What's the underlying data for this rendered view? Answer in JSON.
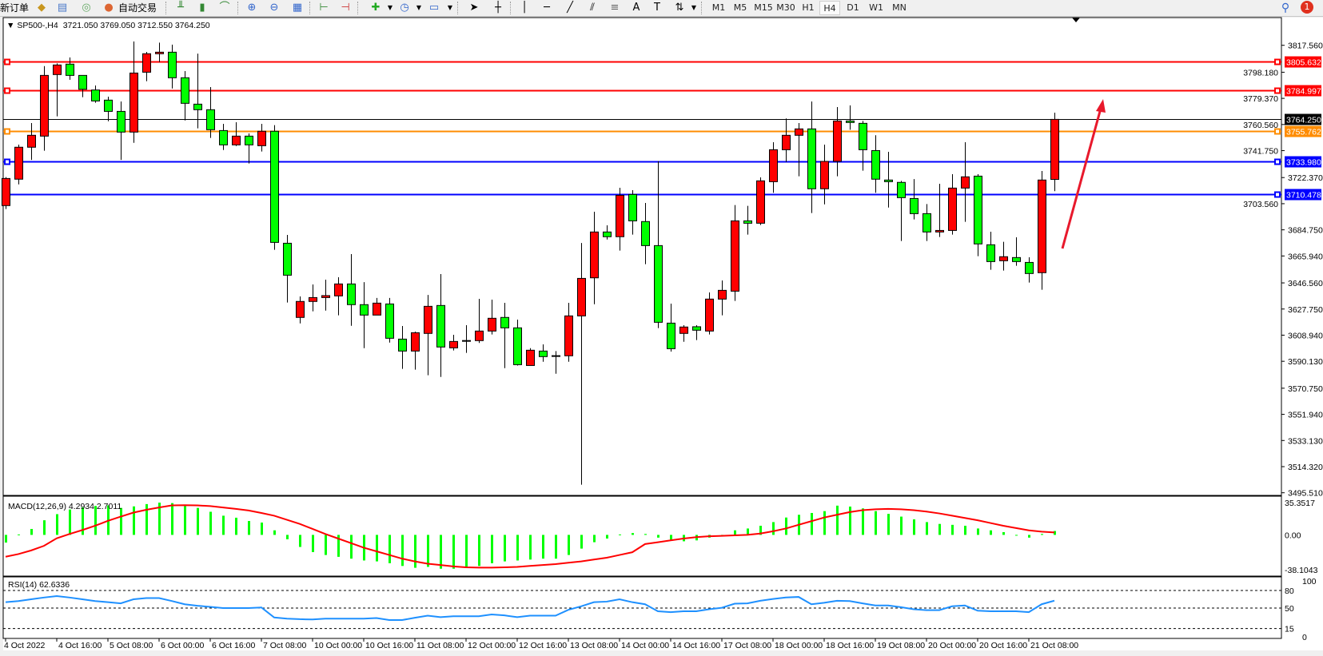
{
  "toolbar": {
    "new_order": "新订单",
    "auto_trading": "自动交易",
    "timeframes": [
      "M1",
      "M5",
      "M15",
      "M30",
      "H1",
      "H4",
      "D1",
      "W1",
      "MN"
    ],
    "active_timeframe": "H4",
    "notification_count": "1"
  },
  "chart_header": {
    "symbol": "SP500-,H4",
    "ohlc": "3721.050 3769.050 3712.550 3764.250"
  },
  "colors": {
    "bull_candle": "#ff0000",
    "bear_candle": "#00ff00",
    "macd_histogram": "#00ff00",
    "macd_signal": "#ff0000",
    "rsi_line": "#1e90ff",
    "resistance": "#ff0000",
    "pivot": "#ff8c00",
    "support": "#0000ff",
    "bid_line": "#000000",
    "arrow": "#e8192c"
  },
  "chart_data": [
    {
      "type": "candlestick",
      "title": "SP500-,H4",
      "ylim": [
        3495.51,
        3817.56
      ],
      "y_ticks": [
        "3817.560",
        "3798.180",
        "3779.370",
        "3760.560",
        "3741.750",
        "3722.370",
        "3703.560",
        "3684.750",
        "3665.940",
        "3646.560",
        "3627.750",
        "3608.940",
        "3590.130",
        "3570.750",
        "3551.940",
        "3533.130",
        "3514.320",
        "3495.510"
      ],
      "x_tick_labels": [
        "4 Oct 2022",
        "4 Oct 16:00",
        "5 Oct 08:00",
        "6 Oct 00:00",
        "6 Oct 16:00",
        "7 Oct 08:00",
        "10 Oct 00:00",
        "10 Oct 16:00",
        "11 Oct 08:00",
        "12 Oct 00:00",
        "12 Oct 16:00",
        "13 Oct 08:00",
        "14 Oct 00:00",
        "14 Oct 16:00",
        "17 Oct 08:00",
        "18 Oct 00:00",
        "18 Oct 16:00",
        "19 Oct 08:00",
        "20 Oct 00:00",
        "20 Oct 16:00",
        "21 Oct 08:00"
      ],
      "bars_per_tick": 4,
      "ohlc": [
        [
          3702.2,
          3722.7,
          3699.7,
          3721.7
        ],
        [
          3721.2,
          3746.1,
          3717.5,
          3744.2
        ],
        [
          3744.2,
          3761.6,
          3735.1,
          3752.8
        ],
        [
          3752.2,
          3802.6,
          3741.7,
          3795.9
        ],
        [
          3796.5,
          3804.5,
          3766.4,
          3803.4
        ],
        [
          3804.0,
          3808.8,
          3792.7,
          3795.9
        ],
        [
          3795.9,
          3795.9,
          3780.2,
          3785.9
        ],
        [
          3785.4,
          3788.6,
          3776.2,
          3777.5
        ],
        [
          3778.1,
          3780.6,
          3762.9,
          3770.0
        ],
        [
          3770.0,
          3777.1,
          3735.1,
          3755.1
        ],
        [
          3755.1,
          3820.3,
          3747.4,
          3797.6
        ],
        [
          3798.2,
          3812.8,
          3791.7,
          3811.5
        ],
        [
          3811.5,
          3819.5,
          3805.5,
          3812.6
        ],
        [
          3812.6,
          3818.0,
          3786.5,
          3794.2
        ],
        [
          3794.2,
          3799.0,
          3763.5,
          3775.8
        ],
        [
          3775.2,
          3811.6,
          3757.8,
          3771.2
        ],
        [
          3771.2,
          3787.5,
          3750.9,
          3756.8
        ],
        [
          3756.2,
          3761.0,
          3742.2,
          3745.9
        ],
        [
          3745.9,
          3762.2,
          3745.1,
          3752.2
        ],
        [
          3752.2,
          3754.1,
          3732.5,
          3745.9
        ],
        [
          3745.3,
          3761.0,
          3741.1,
          3755.7
        ],
        [
          3755.7,
          3760.1,
          3670.4,
          3675.7
        ],
        [
          3675.1,
          3681.1,
          3632.4,
          3652.1
        ],
        [
          3621.7,
          3636.8,
          3617.4,
          3633.2
        ],
        [
          3633.2,
          3645.4,
          3626.1,
          3636.0
        ],
        [
          3636.0,
          3648.9,
          3626.6,
          3637.4
        ],
        [
          3637.2,
          3650.6,
          3623.2,
          3645.8
        ],
        [
          3645.8,
          3667.3,
          3615.7,
          3630.9
        ],
        [
          3630.9,
          3647.1,
          3599.6,
          3623.4
        ],
        [
          3623.4,
          3635.7,
          3623.4,
          3632.0
        ],
        [
          3631.4,
          3635.7,
          3603.6,
          3606.7
        ],
        [
          3606.1,
          3615.5,
          3584.7,
          3597.5
        ],
        [
          3597.5,
          3611.5,
          3584.1,
          3610.7
        ],
        [
          3610.2,
          3637.9,
          3580.1,
          3629.7
        ],
        [
          3630.3,
          3652.9,
          3578.9,
          3600.4
        ],
        [
          3599.8,
          3609.2,
          3597.9,
          3604.4
        ],
        [
          3604.8,
          3616.1,
          3596.2,
          3604.8
        ],
        [
          3605.0,
          3635.1,
          3603.3,
          3611.9
        ],
        [
          3611.9,
          3634.5,
          3609.4,
          3621.1
        ],
        [
          3621.7,
          3632.2,
          3585.2,
          3614.2
        ],
        [
          3614.2,
          3620.1,
          3587.1,
          3587.7
        ],
        [
          3587.1,
          3599.6,
          3587.1,
          3598.1
        ],
        [
          3597.5,
          3602.3,
          3589.8,
          3593.5
        ],
        [
          3593.9,
          3597.5,
          3581.2,
          3593.9
        ],
        [
          3594.1,
          3632.2,
          3589.8,
          3622.8
        ],
        [
          3622.8,
          3675.3,
          3501.3,
          3649.8
        ],
        [
          3650.2,
          3697.8,
          3631.2,
          3683.2
        ],
        [
          3683.2,
          3688.0,
          3677.8,
          3679.8
        ],
        [
          3679.8,
          3715.0,
          3669.8,
          3709.6
        ],
        [
          3710.2,
          3713.3,
          3681.3,
          3691.2
        ],
        [
          3690.7,
          3704.1,
          3660.0,
          3673.4
        ],
        [
          3673.4,
          3734.2,
          3614.0,
          3618.2
        ],
        [
          3617.6,
          3631.6,
          3597.1,
          3599.2
        ],
        [
          3610.2,
          3616.1,
          3604.2,
          3614.8
        ],
        [
          3615.0,
          3616.1,
          3605.4,
          3612.5
        ],
        [
          3611.9,
          3639.7,
          3609.4,
          3634.9
        ],
        [
          3634.9,
          3648.3,
          3623.2,
          3641.2
        ],
        [
          3640.6,
          3702.6,
          3633.6,
          3691.2
        ],
        [
          3691.2,
          3702.0,
          3681.3,
          3689.5
        ],
        [
          3689.5,
          3722.5,
          3688.2,
          3720.0
        ],
        [
          3719.4,
          3747.8,
          3711.4,
          3742.4
        ],
        [
          3742.4,
          3764.9,
          3733.6,
          3752.8
        ],
        [
          3752.8,
          3761.6,
          3723.3,
          3757.4
        ],
        [
          3757.4,
          3777.1,
          3696.8,
          3714.3
        ],
        [
          3714.3,
          3746.1,
          3703.1,
          3734.0
        ],
        [
          3734.0,
          3773.1,
          3723.3,
          3763.1
        ],
        [
          3763.1,
          3774.3,
          3756.8,
          3762.0
        ],
        [
          3761.4,
          3763.1,
          3727.3,
          3742.4
        ],
        [
          3741.8,
          3752.8,
          3711.4,
          3721.2
        ],
        [
          3720.6,
          3740.9,
          3700.8,
          3719.4
        ],
        [
          3718.9,
          3720.0,
          3676.7,
          3707.9
        ],
        [
          3707.3,
          3721.3,
          3692.2,
          3696.4
        ],
        [
          3696.4,
          3703.3,
          3676.7,
          3683.2
        ],
        [
          3683.2,
          3717.9,
          3679.6,
          3684.3
        ],
        [
          3684.3,
          3724.8,
          3681.3,
          3714.8
        ],
        [
          3714.8,
          3747.8,
          3690.5,
          3722.9
        ],
        [
          3723.4,
          3724.8,
          3665.8,
          3674.6
        ],
        [
          3674.0,
          3683.4,
          3656.0,
          3661.9
        ],
        [
          3662.5,
          3676.1,
          3655.4,
          3665.4
        ],
        [
          3664.8,
          3679.4,
          3658.9,
          3661.9
        ],
        [
          3661.3,
          3665.0,
          3646.8,
          3653.3
        ],
        [
          3653.9,
          3727.1,
          3641.6,
          3720.6
        ],
        [
          3721.05,
          3769.05,
          3712.55,
          3764.25
        ]
      ],
      "horizontal_lines": [
        {
          "value": 3805.632,
          "label": "3805.632",
          "color": "#ff0000"
        },
        {
          "value": 3784.997,
          "label": "3784.997",
          "color": "#ff0000"
        },
        {
          "value": 3764.25,
          "label": "3764.250",
          "color": "#000000",
          "kind": "bid"
        },
        {
          "value": 3755.762,
          "label": "3755.762",
          "color": "#ff8c00"
        },
        {
          "value": 3733.98,
          "label": "3733.980",
          "color": "#0000ff"
        },
        {
          "value": 3710.478,
          "label": "3710.478",
          "color": "#0000ff"
        }
      ],
      "annotation": {
        "type": "arrow",
        "direction": "up",
        "from": [
          3665,
          3775
        ],
        "color": "#e8192c"
      }
    },
    {
      "type": "bar+line",
      "title": "MACD(12,26,9) 4.2934 2.7011",
      "ylim": [
        -38.1043,
        35.3517
      ],
      "y_ticks": [
        "35.3517",
        "0.00",
        "-38.1043"
      ],
      "histogram": [
        -8.4,
        0.5,
        6.5,
        16,
        22.7,
        27.8,
        30,
        31.7,
        32.3,
        29.5,
        31.2,
        33.7,
        35.3,
        34.8,
        31.7,
        29.5,
        25.3,
        21,
        18.8,
        15.2,
        13.5,
        5,
        -4.8,
        -13.2,
        -18.8,
        -22,
        -24,
        -26,
        -28,
        -29,
        -31,
        -34,
        -36,
        -35,
        -37,
        -37,
        -36,
        -34,
        -31,
        -29,
        -28,
        -27,
        -26,
        -26,
        -22,
        -15,
        -8,
        -4,
        0.5,
        2,
        1,
        -3,
        -6,
        -7,
        -6,
        -3,
        -1,
        5,
        7,
        10,
        14,
        19,
        22,
        24,
        26,
        32,
        31,
        29,
        26,
        23,
        20,
        17,
        14,
        12,
        11,
        10,
        7,
        5,
        3,
        0,
        -3,
        1,
        4.2934
      ],
      "signal": [
        -23.9,
        -21,
        -17,
        -12,
        -3.7,
        1,
        5.3,
        10,
        15.4,
        20,
        24.4,
        27.5,
        30,
        32.3,
        32.5,
        32.3,
        31.5,
        30,
        28.5,
        26.7,
        24,
        21,
        16.5,
        12,
        6.5,
        1,
        -4,
        -9,
        -14,
        -18,
        -22,
        -26,
        -29,
        -31.5,
        -33,
        -34.5,
        -35.5,
        -35.8,
        -35.8,
        -35.5,
        -35,
        -34,
        -33,
        -32,
        -30.5,
        -29,
        -27,
        -25,
        -22,
        -19,
        -10,
        -8,
        -6,
        -4,
        -2.5,
        -1.5,
        -1,
        -0.5,
        0,
        1.5,
        4,
        7,
        11,
        15,
        19,
        22,
        25,
        27,
        28,
        28.5,
        28,
        27,
        25.5,
        23.5,
        21,
        18.5,
        16,
        13,
        10,
        7.5,
        5,
        3.5,
        2.7011
      ]
    },
    {
      "type": "line",
      "title": "RSI(14) 62.6336",
      "ylim": [
        0,
        100
      ],
      "y_ticks": [
        "100",
        "80",
        "50",
        "15",
        "0"
      ],
      "levels": [
        80,
        50,
        15
      ],
      "values": [
        60,
        62,
        65,
        68,
        70.5,
        68,
        65,
        62,
        60,
        58,
        65,
        67,
        67,
        62,
        56.5,
        54,
        52,
        50,
        50,
        50,
        51,
        34,
        32,
        31,
        30.5,
        32,
        32,
        32,
        32,
        33,
        29.5,
        29.5,
        33.5,
        37,
        34.5,
        36,
        36,
        36,
        39,
        37.5,
        34.5,
        37,
        37,
        37,
        47,
        53,
        60,
        61,
        65,
        60,
        56.5,
        44.5,
        43,
        44.5,
        44.5,
        48,
        50.5,
        57.5,
        58,
        62.5,
        65.5,
        68,
        69,
        56.5,
        59,
        62.5,
        62,
        58,
        54.5,
        54.5,
        51.5,
        48,
        46.5,
        46.5,
        53,
        54.5,
        45.5,
        44.5,
        44.5,
        44.5,
        43,
        56.5,
        62.6336
      ]
    }
  ]
}
